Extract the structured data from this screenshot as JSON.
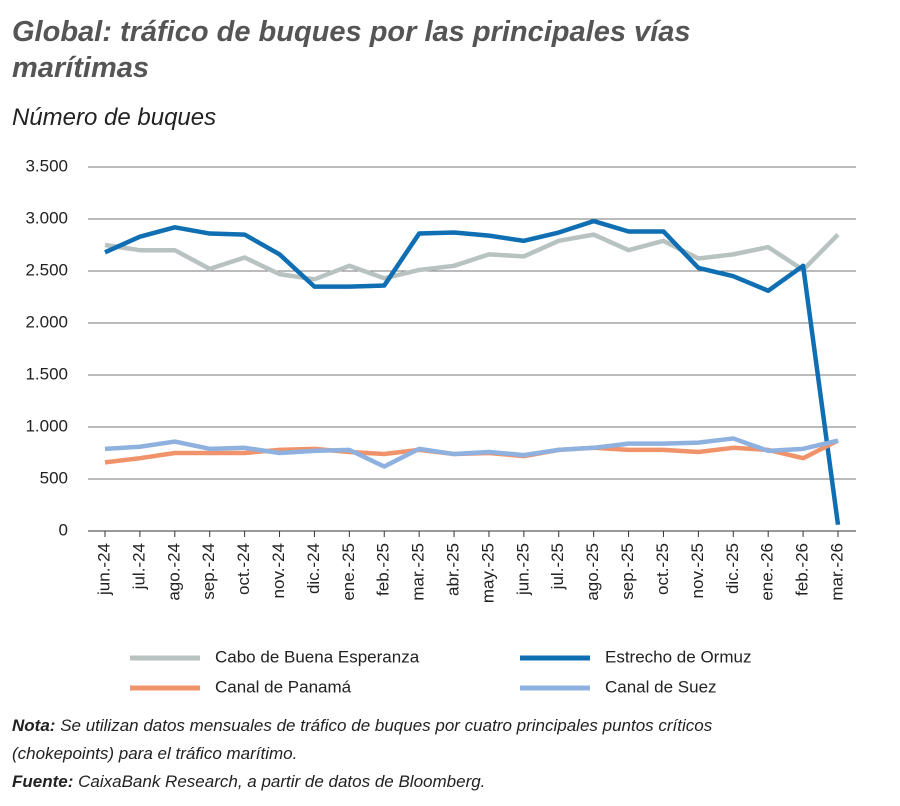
{
  "chart_data": {
    "type": "line",
    "title": "Global: tráfico de buques por las principales vías marítimas",
    "subtitle": "Número de buques",
    "categories": [
      "jun.-24",
      "jul.-24",
      "ago.-24",
      "sep.-24",
      "oct.-24",
      "nov.-24",
      "dic.-24",
      "ene.-25",
      "feb.-25",
      "mar.-25",
      "abr.-25",
      "may.-25",
      "jun.-25",
      "jul.-25",
      "ago.-25",
      "sep.-25",
      "oct.-25",
      "nov.-25",
      "dic.-25",
      "ene.-26",
      "feb.-26",
      "mar.-26"
    ],
    "series": [
      {
        "name": "Cabo de Buena Esperanza",
        "color": "#b7c2c1",
        "values": [
          2750,
          2700,
          2700,
          2520,
          2630,
          2470,
          2420,
          2550,
          2430,
          2510,
          2550,
          2660,
          2640,
          2790,
          2850,
          2700,
          2790,
          2620,
          2660,
          2730,
          2510,
          2850
        ]
      },
      {
        "name": "Estrecho de Ormuz",
        "color": "#0f6fb2",
        "values": [
          2680,
          2830,
          2920,
          2860,
          2850,
          2660,
          2350,
          2350,
          2360,
          2860,
          2870,
          2840,
          2790,
          2870,
          2980,
          2880,
          2880,
          2530,
          2450,
          2310,
          2550,
          60
        ]
      },
      {
        "name": "Canal de Panamá",
        "color": "#f0936a",
        "values": [
          660,
          700,
          750,
          750,
          750,
          780,
          790,
          760,
          740,
          780,
          740,
          750,
          720,
          780,
          800,
          780,
          780,
          760,
          800,
          780,
          700,
          870
        ]
      },
      {
        "name": "Canal de Suez",
        "color": "#8fb1e0",
        "values": [
          790,
          810,
          860,
          790,
          800,
          750,
          770,
          780,
          620,
          790,
          740,
          760,
          730,
          780,
          800,
          840,
          840,
          850,
          890,
          770,
          790,
          870
        ]
      }
    ],
    "ylim": [
      0,
      3500
    ],
    "yticks": [
      0,
      500,
      {
        "value": 1000,
        "label": "1.000"
      },
      {
        "value": 1500,
        "label": "1.500"
      },
      {
        "value": 2000,
        "label": "2.000"
      },
      {
        "value": 2500,
        "label": "2.500"
      },
      {
        "value": 3000,
        "label": "3.000"
      },
      {
        "value": 3500,
        "label": "3.500"
      }
    ],
    "grid": true,
    "legend": "bottom",
    "note_label": "Nota:",
    "note": "Se utilizan datos mensuales de tráfico de buques por cuatro principales puntos críticos (chokepoints) para el tráfico marítimo.",
    "source_label": "Fuente:",
    "source": "CaixaBank Research, a partir de datos de Bloomberg."
  }
}
